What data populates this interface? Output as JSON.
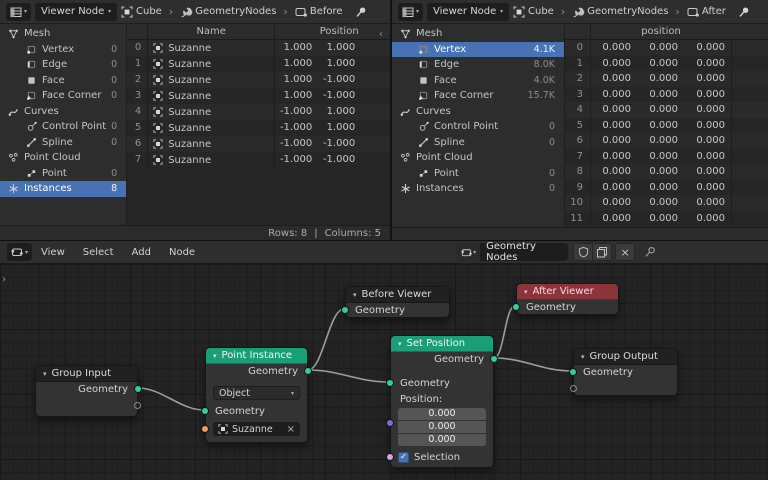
{
  "colors": {
    "accent_select": "#4772b3",
    "node_header_teal": "#1a9e78",
    "node_header_red": "#8c333c",
    "socket_geometry": "#2ecf9e",
    "socket_object": "#ed9e5c",
    "socket_vector": "#7272d2",
    "socket_boolean": "#d9a5d9",
    "wire": "#9e9e9e"
  },
  "icons": {
    "spreadsheet-editor-icon": "grid table",
    "node-editor-icon": "node ball",
    "chevron-down-icon": "▾",
    "breadcrumb-separator": "›",
    "object-icon": "bracketed cube",
    "wrench-icon": "wrench",
    "viewer-node-icon": "node badge",
    "pin-icon": "pushpin",
    "shield-icon": "shield",
    "copy-icon": "stacked papers",
    "close-icon": "×",
    "check-icon": "✓"
  },
  "spreadsheet_left": {
    "header": {
      "viewer_selector": "Viewer Node",
      "object": "Cube",
      "modifier": "GeometryNodes",
      "viewer_node": "Before",
      "separator": "›"
    },
    "sidebar": [
      {
        "label": "Mesh",
        "icon": "mesh-icon",
        "level": 0
      },
      {
        "label": "Vertex",
        "icon": "vertex-icon",
        "level": 1,
        "count": "0"
      },
      {
        "label": "Edge",
        "icon": "edge-icon",
        "level": 1,
        "count": "0"
      },
      {
        "label": "Face",
        "icon": "face-icon",
        "level": 1,
        "count": "0"
      },
      {
        "label": "Face Corner",
        "icon": "face-corner-icon",
        "level": 1,
        "count": "0"
      },
      {
        "label": "Curves",
        "icon": "curves-icon",
        "level": 0
      },
      {
        "label": "Control Point",
        "icon": "control-point-icon",
        "level": 1,
        "count": "0"
      },
      {
        "label": "Spline",
        "icon": "spline-icon",
        "level": 1,
        "count": "0"
      },
      {
        "label": "Point Cloud",
        "icon": "point-cloud-icon",
        "level": 0
      },
      {
        "label": "Point",
        "icon": "point-icon",
        "level": 1,
        "count": "0"
      },
      {
        "label": "Instances",
        "icon": "instances-icon",
        "level": 0,
        "count": "8",
        "selected": true
      }
    ],
    "table": {
      "columns": [
        {
          "label": "Name"
        },
        {
          "label": "Position"
        }
      ],
      "rows": [
        {
          "index": "0",
          "name": "Suzanne",
          "x": "1.000",
          "y": "1.000"
        },
        {
          "index": "1",
          "name": "Suzanne",
          "x": "1.000",
          "y": "1.000"
        },
        {
          "index": "2",
          "name": "Suzanne",
          "x": "1.000",
          "y": "-1.000"
        },
        {
          "index": "3",
          "name": "Suzanne",
          "x": "1.000",
          "y": "-1.000"
        },
        {
          "index": "4",
          "name": "Suzanne",
          "x": "-1.000",
          "y": "1.000"
        },
        {
          "index": "5",
          "name": "Suzanne",
          "x": "-1.000",
          "y": "1.000"
        },
        {
          "index": "6",
          "name": "Suzanne",
          "x": "-1.000",
          "y": "-1.000"
        },
        {
          "index": "7",
          "name": "Suzanne",
          "x": "-1.000",
          "y": "-1.000"
        }
      ]
    },
    "footer": {
      "rows": "Rows: 8",
      "separator": "|",
      "columns": "Columns: 5"
    }
  },
  "spreadsheet_right": {
    "header": {
      "viewer_selector": "Viewer Node",
      "object": "Cube",
      "modifier": "GeometryNodes",
      "viewer_node": "After",
      "separator": "›"
    },
    "sidebar": [
      {
        "label": "Mesh",
        "icon": "mesh-icon",
        "level": 0
      },
      {
        "label": "Vertex",
        "icon": "vertex-icon",
        "level": 1,
        "count": "4.1K",
        "selected": true
      },
      {
        "label": "Edge",
        "icon": "edge-icon",
        "level": 1,
        "count": "8.0K"
      },
      {
        "label": "Face",
        "icon": "face-icon",
        "level": 1,
        "count": "4.0K"
      },
      {
        "label": "Face Corner",
        "icon": "face-corner-icon",
        "level": 1,
        "count": "15.7K"
      },
      {
        "label": "Curves",
        "icon": "curves-icon",
        "level": 0
      },
      {
        "label": "Control Point",
        "icon": "control-point-icon",
        "level": 1,
        "count": "0"
      },
      {
        "label": "Spline",
        "icon": "spline-icon",
        "level": 1,
        "count": "0"
      },
      {
        "label": "Point Cloud",
        "icon": "point-cloud-icon",
        "level": 0
      },
      {
        "label": "Point",
        "icon": "point-icon",
        "level": 1,
        "count": "0"
      },
      {
        "label": "Instances",
        "icon": "instances-icon",
        "level": 0,
        "count": "0"
      }
    ],
    "table": {
      "columns": [
        {
          "label": "position"
        }
      ],
      "rows": [
        {
          "index": "0",
          "x": "0.000",
          "y": "0.000",
          "z": "0.000"
        },
        {
          "index": "1",
          "x": "0.000",
          "y": "0.000",
          "z": "0.000"
        },
        {
          "index": "2",
          "x": "0.000",
          "y": "0.000",
          "z": "0.000"
        },
        {
          "index": "3",
          "x": "0.000",
          "y": "0.000",
          "z": "0.000"
        },
        {
          "index": "4",
          "x": "0.000",
          "y": "0.000",
          "z": "0.000"
        },
        {
          "index": "5",
          "x": "0.000",
          "y": "0.000",
          "z": "0.000"
        },
        {
          "index": "6",
          "x": "0.000",
          "y": "0.000",
          "z": "0.000"
        },
        {
          "index": "7",
          "x": "0.000",
          "y": "0.000",
          "z": "0.000"
        },
        {
          "index": "8",
          "x": "0.000",
          "y": "0.000",
          "z": "0.000"
        },
        {
          "index": "9",
          "x": "0.000",
          "y": "0.000",
          "z": "0.000"
        },
        {
          "index": "10",
          "x": "0.000",
          "y": "0.000",
          "z": "0.000"
        },
        {
          "index": "11",
          "x": "0.000",
          "y": "0.000",
          "z": "0.000"
        }
      ]
    }
  },
  "node_editor": {
    "menus": [
      "View",
      "Select",
      "Add",
      "Node"
    ],
    "tree_name": "Geometry Nodes",
    "nodes": {
      "group_input": {
        "title": "Group Input",
        "output": "Geometry"
      },
      "point_instance": {
        "title": "Point Instance",
        "output": "Geometry",
        "dropdown": "Object",
        "input": "Geometry",
        "object_field": "Suzanne"
      },
      "set_position": {
        "title": "Set Position",
        "output": "Geometry",
        "input": "Geometry",
        "position_label": "Position:",
        "values": [
          "0.000",
          "0.000",
          "0.000"
        ],
        "selection_label": "Selection"
      },
      "before_viewer": {
        "title": "Before Viewer",
        "input": "Geometry"
      },
      "after_viewer": {
        "title": "After Viewer",
        "input": "Geometry"
      },
      "group_output": {
        "title": "Group Output",
        "input": "Geometry"
      }
    }
  }
}
